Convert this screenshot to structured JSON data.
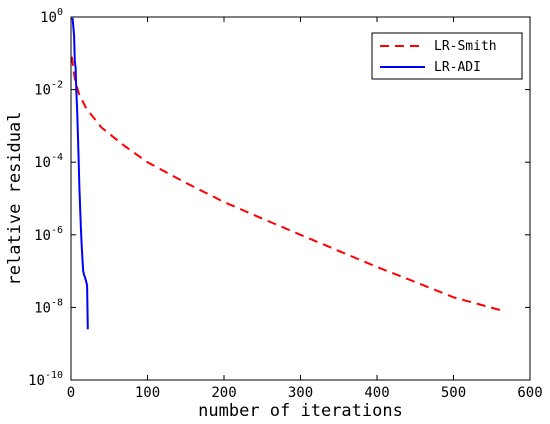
{
  "chart_data": {
    "type": "line",
    "title": "",
    "xlabel": "number of iterations",
    "ylabel": "relative residual",
    "xlim": [
      0,
      600
    ],
    "ylim": [
      1e-10,
      1
    ],
    "yscale": "log",
    "grid": false,
    "legend_position": "top-right",
    "x_ticks": [
      0,
      100,
      200,
      300,
      400,
      500,
      600
    ],
    "y_ticks": [
      {
        "value": 1e-10,
        "base": "10",
        "exp": "-10"
      },
      {
        "value": 1e-08,
        "base": "10",
        "exp": "-8"
      },
      {
        "value": 1e-06,
        "base": "10",
        "exp": "-6"
      },
      {
        "value": 0.0001,
        "base": "10",
        "exp": "-4"
      },
      {
        "value": 0.01,
        "base": "10",
        "exp": "-2"
      },
      {
        "value": 1,
        "base": "10",
        "exp": "0"
      }
    ],
    "series": [
      {
        "name": "LR-Smith",
        "color": "#ff0000",
        "dash": "dashed",
        "x": [
          1,
          5,
          10,
          20,
          40,
          70,
          100,
          150,
          200,
          250,
          300,
          350,
          400,
          450,
          500,
          565
        ],
        "y": [
          0.08,
          0.02,
          0.008,
          0.003,
          0.0009,
          0.00028,
          0.0001,
          2.7e-05,
          8e-06,
          2.8e-06,
          1e-06,
          3.6e-07,
          1.3e-07,
          5e-08,
          1.9e-08,
          8e-09
        ]
      },
      {
        "name": "LR-ADI",
        "color": "#0000ff",
        "dash": "solid",
        "x": [
          2,
          3,
          4,
          5,
          6,
          7,
          8,
          9,
          10,
          11,
          12,
          13,
          14,
          15,
          16,
          17,
          18,
          19,
          20,
          21,
          22
        ],
        "y": [
          0.95,
          0.55,
          0.3,
          0.06,
          0.04,
          0.008,
          0.003,
          0.0006,
          0.0001,
          2e-05,
          5e-06,
          1.5e-06,
          5e-07,
          2e-07,
          1e-07,
          8e-08,
          7e-08,
          6e-08,
          5e-08,
          4e-08,
          2.5e-09
        ]
      }
    ]
  }
}
